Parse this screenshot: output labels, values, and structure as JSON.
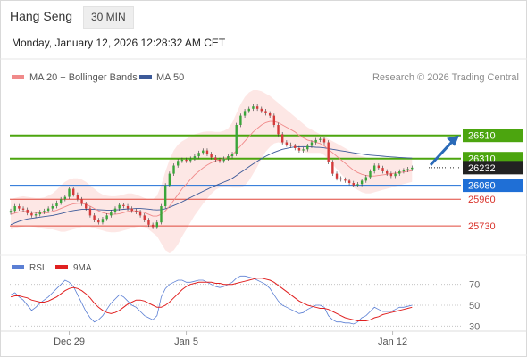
{
  "header": {
    "instrument": "Hang Seng",
    "timeframe": "30 MIN",
    "datetime": "Monday, January 12, 2026 12:28:32 AM CET"
  },
  "legend": {
    "ma20_label": "MA 20 + Bollinger Bands",
    "ma50_label": "MA 50",
    "ma20_color": "#f08a8a",
    "ma50_color": "#3d5a99",
    "copyright": "Research © 2026 Trading Central"
  },
  "rsi_legend": {
    "rsi_label": "RSI",
    "ma9_label": "9MA",
    "rsi_color": "#5b7fd4",
    "ma9_color": "#e02020"
  },
  "x_axis": {
    "labels": [
      "Dec 29",
      "Jan 5",
      "Jan 12"
    ]
  },
  "chart_data": [
    {
      "type": "line",
      "title": "",
      "y_scale": {
        "min": 25600,
        "max": 26900
      },
      "x_index_range": [
        0,
        100
      ],
      "x_tick_labels": [
        {
          "index": 14,
          "label": "Dec 29"
        },
        {
          "index": 42,
          "label": "Jan 5"
        },
        {
          "index": 92,
          "label": "Jan 12"
        }
      ],
      "horizontal_levels": [
        {
          "value": 26510,
          "color": "#4ca50f",
          "style": "solid",
          "kind": "resistance"
        },
        {
          "value": 26310,
          "color": "#4ca50f",
          "style": "solid",
          "kind": "resistance"
        },
        {
          "value": 26232,
          "color": "#222222",
          "style": "dotted",
          "kind": "last-price"
        },
        {
          "value": 26080,
          "color": "#1f6fd6",
          "style": "solid",
          "kind": "pivot"
        },
        {
          "value": 25960,
          "color": "#e0473a",
          "style": "solid",
          "kind": "support"
        },
        {
          "value": 25730,
          "color": "#e0473a",
          "style": "solid",
          "kind": "support"
        }
      ],
      "candles_close": [
        25860,
        25900,
        25880,
        25870,
        25840,
        25820,
        25830,
        25850,
        25860,
        25880,
        25900,
        25930,
        25960,
        25980,
        26050,
        26000,
        25960,
        25920,
        25880,
        25820,
        25780,
        25760,
        25790,
        25820,
        25850,
        25880,
        25910,
        25900,
        25880,
        25860,
        25850,
        25820,
        25780,
        25740,
        25720,
        25760,
        25900,
        26080,
        26180,
        26250,
        26290,
        26300,
        26290,
        26310,
        26330,
        26360,
        26380,
        26350,
        26320,
        26300,
        26290,
        26310,
        26330,
        26350,
        26600,
        26680,
        26720,
        26740,
        26760,
        26740,
        26720,
        26700,
        26680,
        26600,
        26520,
        26450,
        26430,
        26420,
        26400,
        26380,
        26390,
        26420,
        26450,
        26470,
        26480,
        26450,
        26280,
        26180,
        26140,
        26130,
        26120,
        26100,
        26080,
        26090,
        26120,
        26150,
        26200,
        26250,
        26230,
        26200,
        26180,
        26160,
        26180,
        26200,
        26210,
        26220,
        26232
      ],
      "ma20": [
        25830,
        25840,
        25850,
        25855,
        25855,
        25850,
        25845,
        25840,
        25840,
        25845,
        25855,
        25865,
        25880,
        25895,
        25910,
        25920,
        25925,
        25925,
        25915,
        25900,
        25880,
        25860,
        25845,
        25835,
        25830,
        25830,
        25835,
        25845,
        25855,
        25860,
        25860,
        25855,
        25845,
        25830,
        25815,
        25815,
        25830,
        25860,
        25900,
        25950,
        26000,
        26050,
        26090,
        26130,
        26170,
        26200,
        26230,
        26255,
        26275,
        26290,
        26300,
        26310,
        26320,
        26340,
        26380,
        26420,
        26460,
        26500,
        26540,
        26570,
        26600,
        26620,
        26630,
        26630,
        26620,
        26600,
        26580,
        26560,
        26540,
        26510,
        26490,
        26470,
        26460,
        26450,
        26440,
        26420,
        26390,
        26360,
        26330,
        26300,
        26270,
        26240,
        26210,
        26190,
        26175,
        26165,
        26160,
        26160,
        26165,
        26170,
        26175,
        26180,
        26185,
        26190,
        26195,
        26200,
        26205
      ],
      "bollinger_upper": [
        25960,
        25970,
        25980,
        25985,
        25980,
        25975,
        25970,
        25970,
        25975,
        25990,
        26010,
        26040,
        26080,
        26110,
        26130,
        26140,
        26140,
        26130,
        26110,
        26080,
        26050,
        26020,
        26000,
        25990,
        25985,
        25985,
        25990,
        26000,
        26010,
        26010,
        26000,
        25985,
        25970,
        25960,
        25960,
        25990,
        26080,
        26200,
        26300,
        26380,
        26430,
        26460,
        26480,
        26500,
        26520,
        26530,
        26540,
        26545,
        26545,
        26540,
        26540,
        26550,
        26570,
        26620,
        26700,
        26780,
        26840,
        26880,
        26900,
        26900,
        26890,
        26870,
        26850,
        26820,
        26790,
        26760,
        26730,
        26700,
        26670,
        26640,
        26610,
        26580,
        26560,
        26540,
        26520,
        26500,
        26480,
        26460,
        26440,
        26420,
        26400,
        26380,
        26360,
        26340,
        26330,
        26320,
        26310,
        26300,
        26300,
        26300,
        26300,
        26300,
        26300,
        26300,
        26300,
        26300,
        26300
      ],
      "bollinger_lower": [
        25700,
        25710,
        25720,
        25725,
        25730,
        25725,
        25720,
        25710,
        25705,
        25700,
        25700,
        25690,
        25680,
        25680,
        25690,
        25700,
        25710,
        25720,
        25720,
        25720,
        25710,
        25700,
        25690,
        25680,
        25675,
        25675,
        25680,
        25690,
        25700,
        25710,
        25720,
        25725,
        25720,
        25700,
        25670,
        25640,
        25580,
        25520,
        25500,
        25520,
        25570,
        25640,
        25700,
        25760,
        25820,
        25870,
        25920,
        25965,
        26005,
        26040,
        26060,
        26070,
        26070,
        26060,
        26060,
        26060,
        26080,
        26120,
        26180,
        26240,
        26310,
        26370,
        26410,
        26440,
        26450,
        26440,
        26430,
        26420,
        26410,
        26380,
        26370,
        26360,
        26360,
        26360,
        26360,
        26340,
        26300,
        26260,
        26220,
        26180,
        26140,
        26100,
        26060,
        26040,
        26020,
        26010,
        26010,
        26020,
        26030,
        26040,
        26050,
        26060,
        26070,
        26080,
        26090,
        26100,
        26110
      ],
      "ma50": [
        25740,
        25755,
        25770,
        25780,
        25790,
        25795,
        25800,
        25805,
        25810,
        25815,
        25820,
        25828,
        25836,
        25845,
        25855,
        25862,
        25868,
        25872,
        25874,
        25874,
        25872,
        25870,
        25868,
        25866,
        25866,
        25868,
        25870,
        25873,
        25876,
        25878,
        25880,
        25880,
        25878,
        25875,
        25870,
        25868,
        25870,
        25878,
        25890,
        25905,
        25920,
        25938,
        25956,
        25974,
        25992,
        26010,
        26028,
        26045,
        26062,
        26078,
        26093,
        26108,
        26122,
        26140,
        26165,
        26190,
        26215,
        26240,
        26265,
        26288,
        26310,
        26330,
        26348,
        26364,
        26378,
        26390,
        26398,
        26405,
        26410,
        26412,
        26413,
        26412,
        26410,
        26408,
        26406,
        26402,
        26396,
        26390,
        26384,
        26378,
        26372,
        26366,
        26360,
        26354,
        26349,
        26344,
        26340,
        26337,
        26334,
        26331,
        26328,
        26325,
        26322,
        26320,
        26318,
        26316,
        26314
      ]
    },
    {
      "type": "line",
      "title": "",
      "y_scale": {
        "min": 20,
        "max": 80
      },
      "x_index_range": [
        0,
        100
      ],
      "grid_levels": [
        70,
        50,
        30
      ],
      "series": [
        {
          "name": "RSI",
          "values": [
            60,
            62,
            58,
            55,
            50,
            45,
            48,
            52,
            55,
            58,
            62,
            66,
            70,
            74,
            72,
            68,
            60,
            52,
            44,
            38,
            34,
            36,
            40,
            46,
            52,
            56,
            60,
            58,
            54,
            50,
            48,
            44,
            40,
            38,
            36,
            40,
            58,
            66,
            70,
            72,
            74,
            74,
            72,
            72,
            73,
            74,
            74,
            72,
            70,
            68,
            67,
            68,
            70,
            72,
            76,
            78,
            78,
            77,
            76,
            74,
            72,
            70,
            66,
            60,
            54,
            50,
            48,
            46,
            44,
            42,
            43,
            46,
            48,
            50,
            50,
            48,
            40,
            36,
            34,
            34,
            33,
            33,
            32,
            34,
            38,
            40,
            44,
            48,
            46,
            44,
            44,
            44,
            46,
            48,
            48,
            49,
            50
          ]
        },
        {
          "name": "9MA",
          "values": [
            58,
            59,
            59,
            58,
            57,
            55,
            54,
            53,
            53,
            54,
            56,
            58,
            61,
            64,
            66,
            67,
            66,
            64,
            61,
            57,
            52,
            48,
            45,
            43,
            42,
            43,
            45,
            48,
            51,
            53,
            55,
            55,
            54,
            52,
            50,
            48,
            48,
            50,
            53,
            57,
            61,
            65,
            68,
            70,
            71,
            72,
            72,
            72,
            72,
            71,
            71,
            70,
            70,
            70,
            71,
            72,
            73,
            74,
            75,
            76,
            76,
            75,
            74,
            72,
            69,
            66,
            63,
            60,
            57,
            54,
            52,
            50,
            49,
            48,
            47,
            47,
            46,
            44,
            42,
            40,
            38,
            37,
            36,
            35,
            35,
            35,
            36,
            38,
            39,
            41,
            42,
            43,
            44,
            45,
            46,
            47,
            48
          ]
        }
      ]
    }
  ]
}
